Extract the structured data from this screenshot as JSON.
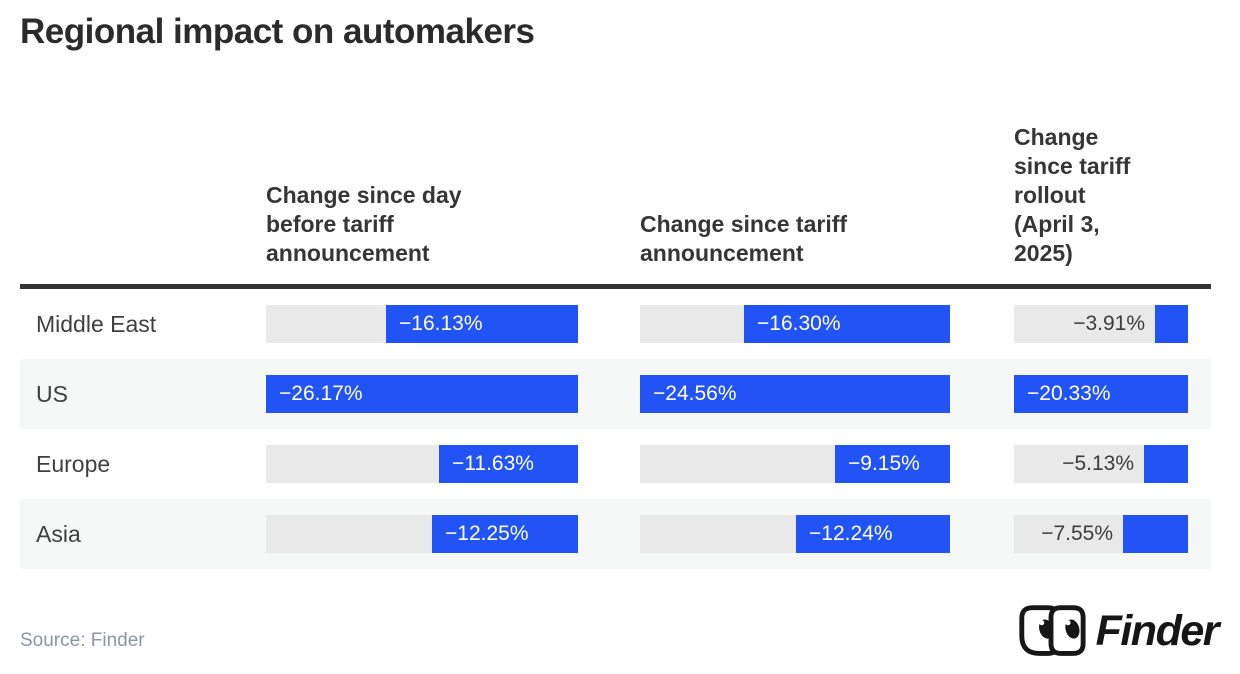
{
  "title": "Regional impact on automakers",
  "source": "Source: Finder",
  "logo_text": "Finder",
  "colors": {
    "bar_blue": "#2253f5",
    "track_gray": "#e9e9e9",
    "row_stripe_gray": "#f6f7f7",
    "header_rule_dark": "#333333"
  },
  "headers": {
    "col1": "Change since day\nbefore tariff\nannouncement",
    "col2": "Change since tariff\nannouncement",
    "col3": "Change\nsince tariff\nrollout\n(April 3,\n2025)"
  },
  "rows": [
    {
      "label": "Middle East"
    },
    {
      "label": "US"
    },
    {
      "label": "Europe"
    },
    {
      "label": "Asia"
    }
  ],
  "chart_data": {
    "type": "bar",
    "orientation": "horizontal",
    "title": "Regional impact on automakers",
    "categories": [
      "Middle East",
      "US",
      "Europe",
      "Asia"
    ],
    "series": [
      {
        "name": "Change since day before tariff announcement",
        "values": [
          -16.13,
          -26.17,
          -11.63,
          -12.25
        ],
        "labels": [
          "−16.13%",
          "−26.17%",
          "−11.63%",
          "−12.25%"
        ]
      },
      {
        "name": "Change since tariff announcement",
        "values": [
          -16.3,
          -24.56,
          -9.15,
          -12.24
        ],
        "labels": [
          "−16.30%",
          "−24.56%",
          "−9.15%",
          "−12.24%"
        ]
      },
      {
        "name": "Change since tariff rollout (April 3, 2025)",
        "values": [
          -3.91,
          -20.33,
          -5.13,
          -7.55
        ],
        "labels": [
          "−3.91%",
          "−20.33%",
          "−5.13%",
          "−7.55%"
        ]
      }
    ],
    "unit": "%",
    "bar_color": "#2253f5",
    "track_color": "#e9e9e9",
    "grid": false,
    "legend": false,
    "scale_note": "each column scaled independently; bar length = |value| / column max"
  }
}
